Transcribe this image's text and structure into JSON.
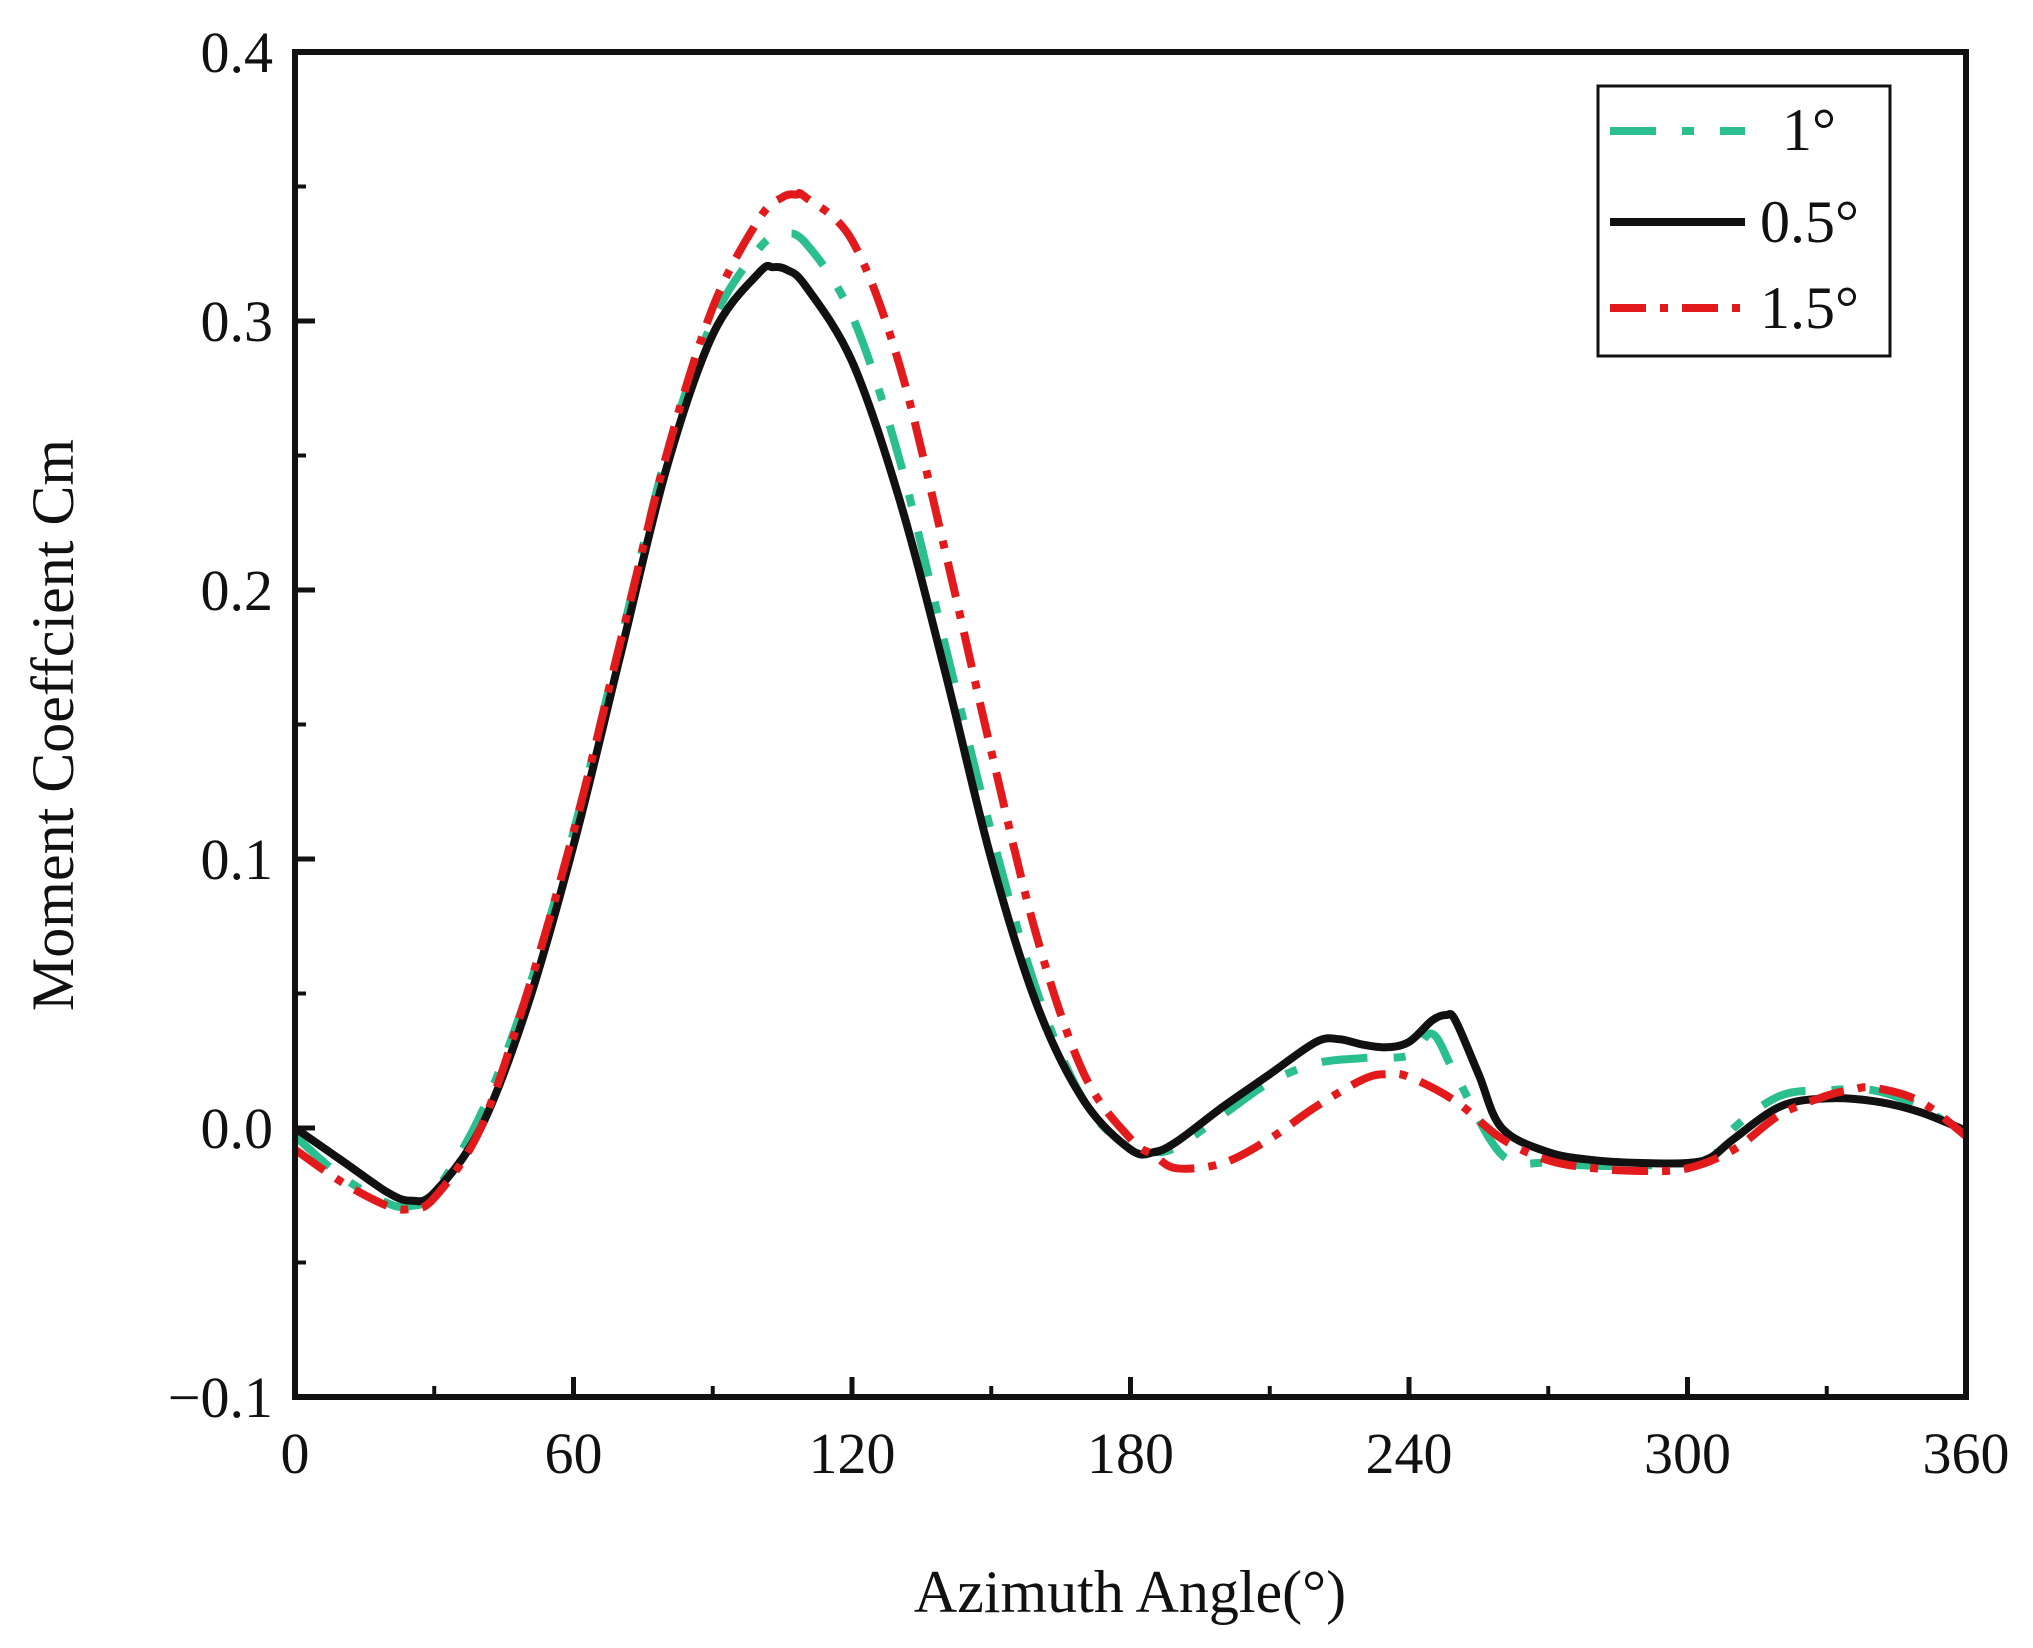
{
  "chart_data": {
    "type": "line",
    "title": "",
    "xlabel": "Azimuth Angle(°)",
    "ylabel": "Moment Coeffcient Cm",
    "xlim": [
      0,
      360
    ],
    "ylim": [
      -0.1,
      0.4
    ],
    "xticks": [
      0,
      60,
      120,
      180,
      240,
      300,
      360
    ],
    "xtick_labels": [
      "0",
      "60",
      "120",
      "180",
      "240",
      "300",
      "360"
    ],
    "yticks": [
      -0.1,
      0.0,
      0.1,
      0.2,
      0.3,
      0.4
    ],
    "ytick_labels": [
      "−0.1",
      "0.0",
      "0.1",
      "0.2",
      "0.3",
      "0.4"
    ],
    "grid": false,
    "legend_position": "top-right",
    "series": [
      {
        "name": "1°",
        "color": "#2bbf8f",
        "dash": "dash-dot",
        "x": [
          0,
          10,
          20,
          25,
          30,
          40,
          50,
          60,
          70,
          80,
          90,
          100,
          105,
          110,
          120,
          130,
          140,
          150,
          160,
          170,
          180,
          185,
          190,
          200,
          210,
          220,
          230,
          240,
          245,
          250,
          260,
          270,
          280,
          290,
          300,
          305,
          310,
          320,
          330,
          340,
          350,
          360
        ],
        "y": [
          -0.003,
          -0.018,
          -0.028,
          -0.029,
          -0.024,
          0.005,
          0.05,
          0.11,
          0.18,
          0.25,
          0.3,
          0.327,
          0.332,
          0.329,
          0.302,
          0.25,
          0.18,
          0.11,
          0.05,
          0.01,
          -0.008,
          -0.009,
          -0.007,
          0.005,
          0.017,
          0.024,
          0.026,
          0.027,
          0.035,
          0.02,
          -0.01,
          -0.013,
          -0.014,
          -0.014,
          -0.013,
          -0.012,
          0.0,
          0.012,
          0.014,
          0.014,
          0.008,
          -0.003
        ]
      },
      {
        "name": "0.5°",
        "color": "#111111",
        "dash": "solid",
        "x": [
          0,
          10,
          20,
          25,
          30,
          40,
          50,
          60,
          70,
          80,
          90,
          100,
          103,
          106,
          110,
          120,
          130,
          140,
          150,
          160,
          170,
          180,
          185,
          190,
          200,
          210,
          220,
          225,
          230,
          235,
          240,
          245,
          248,
          250,
          255,
          260,
          270,
          280,
          290,
          300,
          305,
          310,
          320,
          330,
          340,
          350,
          360
        ],
        "y": [
          0.0,
          -0.012,
          -0.024,
          -0.027,
          -0.024,
          0.0,
          0.045,
          0.105,
          0.175,
          0.245,
          0.295,
          0.318,
          0.32,
          0.319,
          0.313,
          0.285,
          0.235,
          0.17,
          0.1,
          0.045,
          0.01,
          -0.008,
          -0.009,
          -0.005,
          0.008,
          0.02,
          0.032,
          0.033,
          0.031,
          0.03,
          0.032,
          0.04,
          0.042,
          0.04,
          0.02,
          0.0,
          -0.009,
          -0.012,
          -0.013,
          -0.013,
          -0.011,
          -0.004,
          0.008,
          0.011,
          0.01,
          0.006,
          -0.001
        ]
      },
      {
        "name": "1.5°",
        "color": "#e31a1c",
        "dash": "dash-dot",
        "x": [
          0,
          10,
          20,
          25,
          30,
          40,
          50,
          60,
          70,
          80,
          90,
          100,
          105,
          108,
          110,
          120,
          130,
          140,
          150,
          160,
          170,
          180,
          185,
          190,
          200,
          210,
          220,
          230,
          235,
          240,
          250,
          260,
          270,
          280,
          290,
          300,
          310,
          320,
          330,
          335,
          340,
          350,
          360
        ],
        "y": [
          -0.008,
          -0.02,
          -0.029,
          -0.03,
          -0.026,
          0.0,
          0.05,
          0.11,
          0.18,
          0.25,
          0.305,
          0.338,
          0.346,
          0.347,
          0.346,
          0.33,
          0.285,
          0.215,
          0.14,
          0.07,
          0.02,
          -0.004,
          -0.01,
          -0.015,
          -0.013,
          -0.004,
          0.008,
          0.018,
          0.02,
          0.019,
          0.01,
          -0.004,
          -0.012,
          -0.015,
          -0.016,
          -0.015,
          -0.008,
          0.005,
          0.012,
          0.014,
          0.015,
          0.01,
          -0.003
        ]
      }
    ]
  }
}
